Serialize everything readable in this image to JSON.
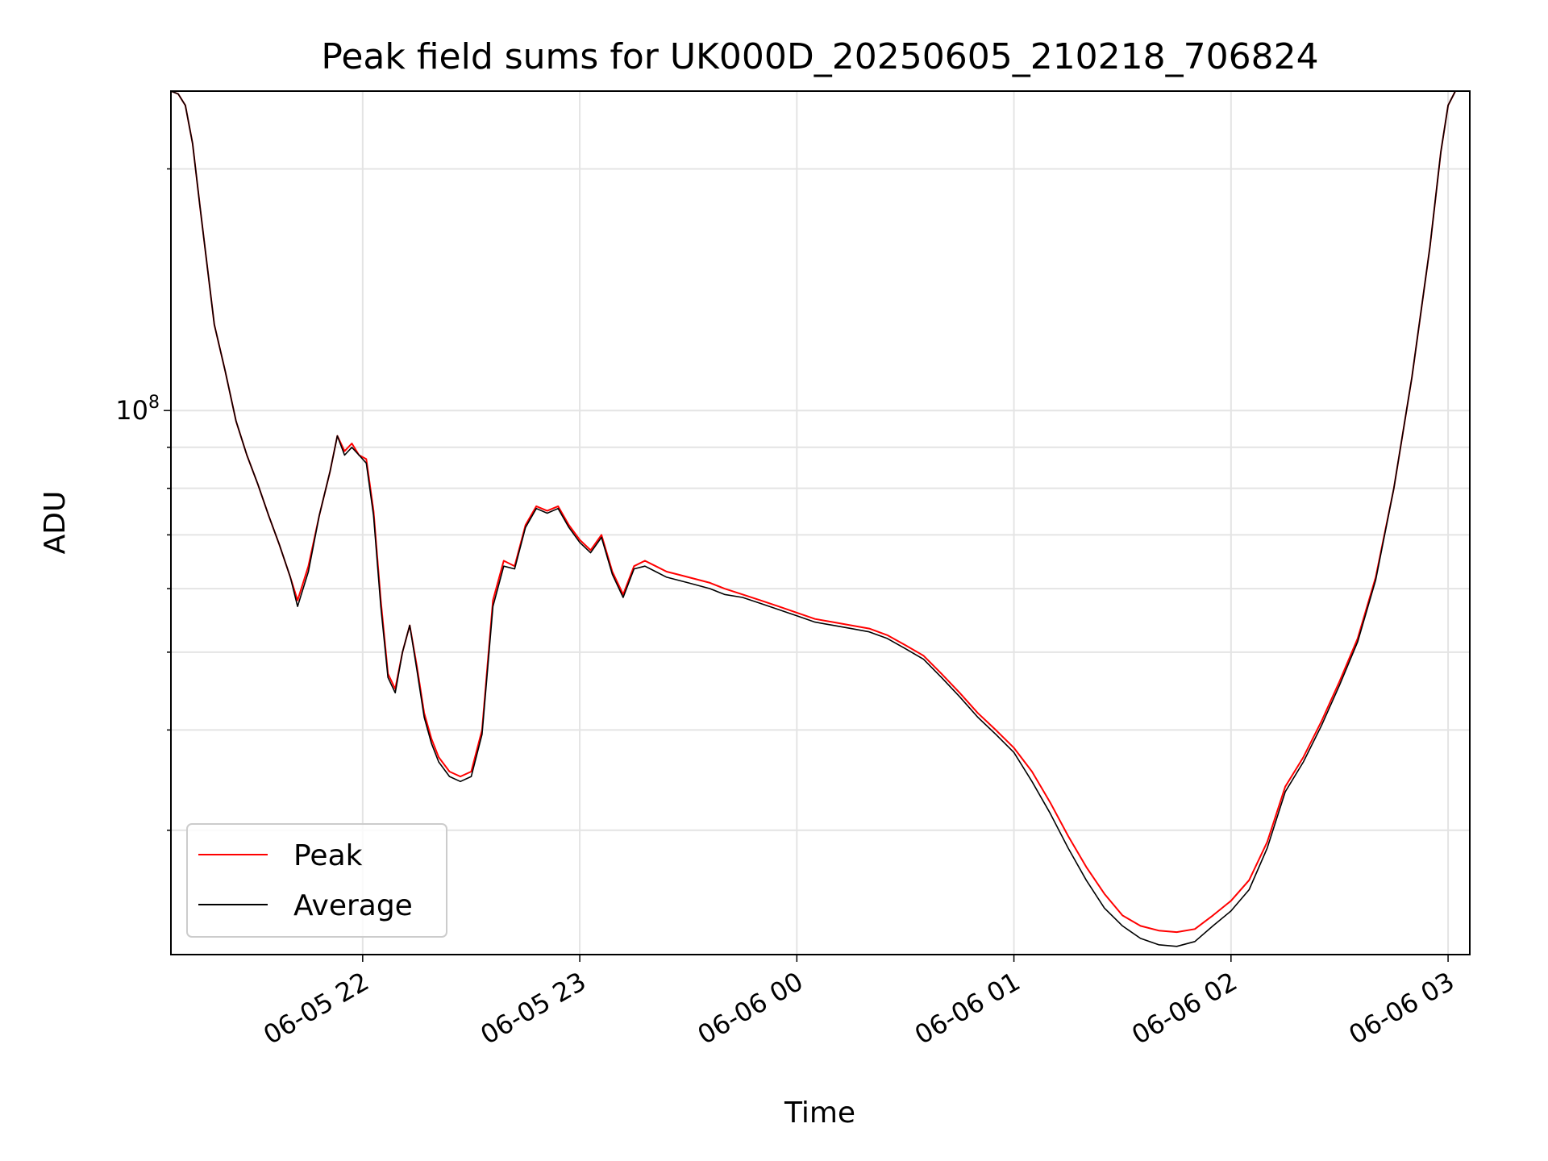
{
  "chart_data": {
    "type": "line",
    "title": "Peak field sums for UK000D_20250605_210218_706824",
    "xlabel": "Time",
    "ylabel": "ADU",
    "y_scale": "log",
    "ylim": [
      21000000,
      250000000
    ],
    "xlim": [
      "2025-06-05 21:07",
      "2025-06-06 03:06"
    ],
    "grid": true,
    "legend_position": "lower-left",
    "x_ticks": [
      {
        "time": "2025-06-05 22:00",
        "label": "06-05 22"
      },
      {
        "time": "2025-06-05 23:00",
        "label": "06-05 23"
      },
      {
        "time": "2025-06-06 00:00",
        "label": "06-06 00"
      },
      {
        "time": "2025-06-06 01:00",
        "label": "06-06 01"
      },
      {
        "time": "2025-06-06 02:00",
        "label": "06-06 02"
      },
      {
        "time": "2025-06-06 03:00",
        "label": "06-06 03"
      }
    ],
    "y_ticks": [
      {
        "value": 100000000,
        "label_base": "10",
        "label_exp": "8"
      }
    ],
    "y_minor_ticks": [
      30000000,
      40000000,
      50000000,
      60000000,
      70000000,
      80000000,
      90000000,
      200000000
    ],
    "x": [
      "2025-06-05 21:07",
      "2025-06-05 21:09",
      "2025-06-05 21:11",
      "2025-06-05 21:13",
      "2025-06-05 21:15",
      "2025-06-05 21:19",
      "2025-06-05 21:22",
      "2025-06-05 21:25",
      "2025-06-05 21:28",
      "2025-06-05 21:31",
      "2025-06-05 21:34",
      "2025-06-05 21:37",
      "2025-06-05 21:40",
      "2025-06-05 21:42",
      "2025-06-05 21:45",
      "2025-06-05 21:48",
      "2025-06-05 21:51",
      "2025-06-05 21:53",
      "2025-06-05 21:55",
      "2025-06-05 21:57",
      "2025-06-05 21:59",
      "2025-06-05 22:01",
      "2025-06-05 22:03",
      "2025-06-05 22:05",
      "2025-06-05 22:07",
      "2025-06-05 22:09",
      "2025-06-05 22:11",
      "2025-06-05 22:13",
      "2025-06-05 22:15",
      "2025-06-05 22:17",
      "2025-06-05 22:19",
      "2025-06-05 22:21",
      "2025-06-05 22:24",
      "2025-06-05 22:27",
      "2025-06-05 22:30",
      "2025-06-05 22:33",
      "2025-06-05 22:36",
      "2025-06-05 22:39",
      "2025-06-05 22:42",
      "2025-06-05 22:45",
      "2025-06-05 22:48",
      "2025-06-05 22:51",
      "2025-06-05 22:54",
      "2025-06-05 22:57",
      "2025-06-05 23:00",
      "2025-06-05 23:03",
      "2025-06-05 23:06",
      "2025-06-05 23:09",
      "2025-06-05 23:12",
      "2025-06-05 23:15",
      "2025-06-05 23:18",
      "2025-06-05 23:21",
      "2025-06-05 23:24",
      "2025-06-05 23:27",
      "2025-06-05 23:30",
      "2025-06-05 23:33",
      "2025-06-05 23:36",
      "2025-06-05 23:40",
      "2025-06-05 23:45",
      "2025-06-05 23:50",
      "2025-06-05 23:55",
      "2025-06-06 00:00",
      "2025-06-06 00:05",
      "2025-06-06 00:10",
      "2025-06-06 00:15",
      "2025-06-06 00:20",
      "2025-06-06 00:25",
      "2025-06-06 00:30",
      "2025-06-06 00:35",
      "2025-06-06 00:40",
      "2025-06-06 00:45",
      "2025-06-06 00:50",
      "2025-06-06 00:55",
      "2025-06-06 01:00",
      "2025-06-06 01:05",
      "2025-06-06 01:10",
      "2025-06-06 01:15",
      "2025-06-06 01:20",
      "2025-06-06 01:25",
      "2025-06-06 01:30",
      "2025-06-06 01:35",
      "2025-06-06 01:40",
      "2025-06-06 01:45",
      "2025-06-06 01:50",
      "2025-06-06 01:55",
      "2025-06-06 02:00",
      "2025-06-06 02:05",
      "2025-06-06 02:10",
      "2025-06-06 02:15",
      "2025-06-06 02:20",
      "2025-06-06 02:25",
      "2025-06-06 02:30",
      "2025-06-06 02:35",
      "2025-06-06 02:40",
      "2025-06-06 02:45",
      "2025-06-06 02:50",
      "2025-06-06 02:55",
      "2025-06-06 02:58",
      "2025-06-06 03:00",
      "2025-06-06 03:02",
      "2025-06-06 03:06"
    ],
    "series": [
      {
        "name": "Peak",
        "color": "#ff0000",
        "values": [
          250000000,
          248000000,
          240000000,
          215000000,
          180000000,
          128000000,
          112000000,
          97000000,
          88000000,
          81000000,
          74000000,
          68000000,
          62000000,
          58000000,
          64000000,
          74000000,
          84000000,
          93000000,
          89000000,
          91000000,
          88000000,
          87000000,
          75000000,
          58000000,
          47000000,
          45000000,
          50000000,
          54000000,
          48000000,
          42000000,
          39000000,
          37000000,
          35500000,
          35000000,
          35500000,
          40000000,
          58000000,
          65000000,
          64000000,
          72000000,
          76000000,
          75000000,
          76000000,
          72000000,
          69000000,
          67000000,
          70000000,
          63000000,
          59000000,
          64000000,
          65000000,
          64000000,
          63000000,
          62500000,
          62000000,
          61500000,
          61000000,
          60000000,
          59000000,
          58000000,
          57000000,
          56000000,
          55000000,
          54500000,
          54000000,
          53500000,
          52500000,
          51000000,
          49500000,
          47000000,
          44500000,
          42000000,
          40000000,
          38000000,
          35500000,
          32500000,
          29500000,
          27000000,
          25000000,
          23500000,
          22800000,
          22500000,
          22400000,
          22600000,
          23500000,
          24500000,
          26000000,
          29000000,
          34000000,
          37000000,
          41000000,
          46000000,
          52000000,
          62000000,
          80000000,
          110000000,
          160000000,
          210000000,
          240000000,
          250000000,
          250000000
        ]
      },
      {
        "name": "Average",
        "color": "#000000",
        "values": [
          250000000,
          248000000,
          240000000,
          215000000,
          180000000,
          128000000,
          112000000,
          97000000,
          88000000,
          81000000,
          74000000,
          68000000,
          62000000,
          57000000,
          63000000,
          74000000,
          84000000,
          93000000,
          88000000,
          90000000,
          88000000,
          86000000,
          74000000,
          57000000,
          46500000,
          44500000,
          50000000,
          54000000,
          47500000,
          41500000,
          38500000,
          36500000,
          35000000,
          34500000,
          35000000,
          39500000,
          57000000,
          64000000,
          63500000,
          71500000,
          75500000,
          74500000,
          75500000,
          71500000,
          68500000,
          66500000,
          69500000,
          62500000,
          58500000,
          63500000,
          64000000,
          63000000,
          62000000,
          61500000,
          61000000,
          60500000,
          60000000,
          59000000,
          58500000,
          57500000,
          56500000,
          55500000,
          54500000,
          54000000,
          53500000,
          53000000,
          52000000,
          50500000,
          49000000,
          46500000,
          44000000,
          41500000,
          39500000,
          37500000,
          34500000,
          31500000,
          28500000,
          26000000,
          24000000,
          22800000,
          22000000,
          21600000,
          21500000,
          21800000,
          22800000,
          23800000,
          25300000,
          28500000,
          33500000,
          36500000,
          40500000,
          45500000,
          51500000,
          61500000,
          80000000,
          110000000,
          160000000,
          210000000,
          240000000,
          250000000,
          250000000
        ]
      }
    ]
  }
}
